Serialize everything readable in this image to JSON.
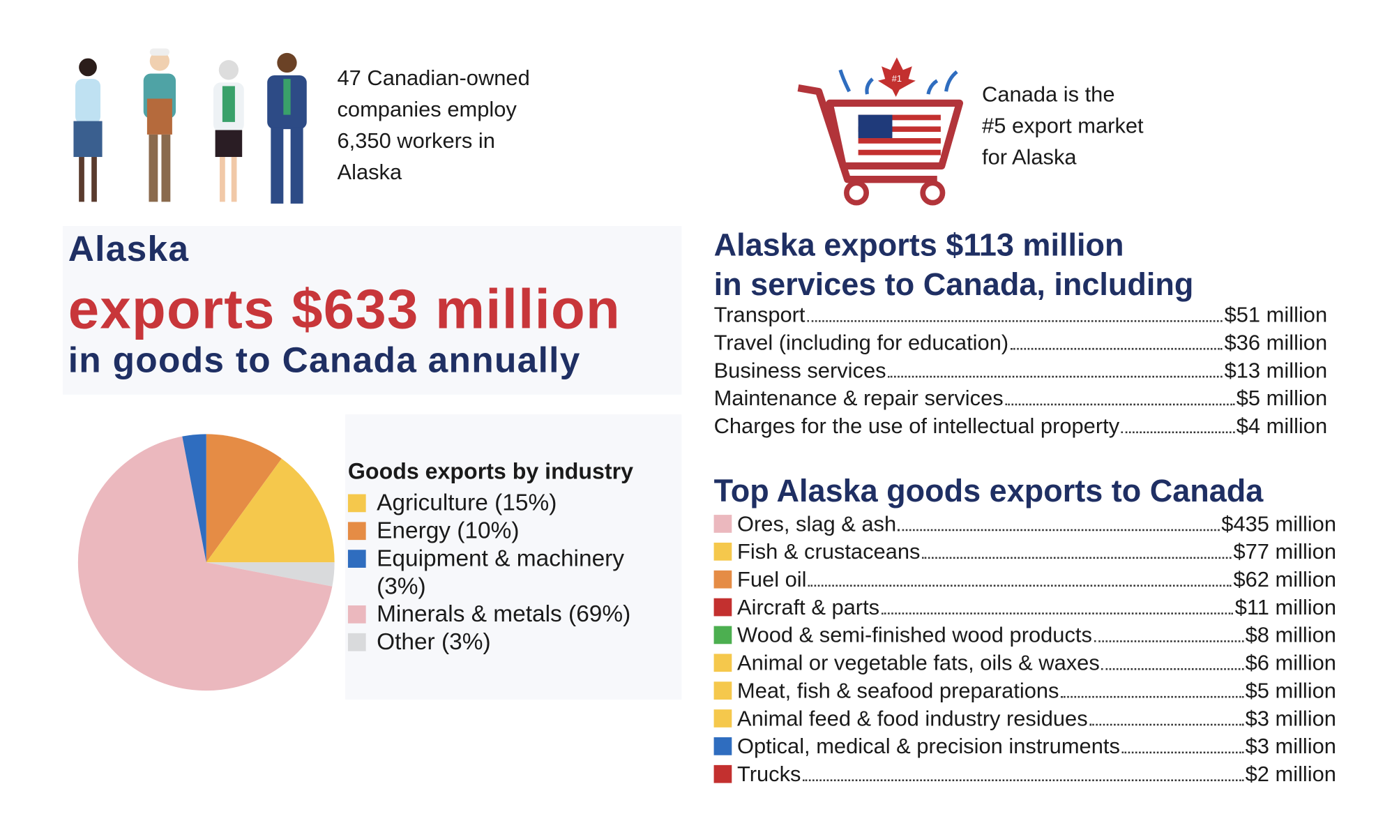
{
  "people_note": [
    "47 Canadian-owned",
    "companies employ",
    "6,350 workers in",
    "Alaska"
  ],
  "market_note": [
    "Canada is the",
    "#5 export market",
    "for Alaska"
  ],
  "cart_badge": "#1",
  "headline": {
    "state": "Alaska",
    "amount": "exports $633 million",
    "rest": "in goods to Canada annually"
  },
  "chart_data": {
    "type": "pie",
    "title": "Goods exports by industry",
    "categories": [
      "Agriculture (15%)",
      "Energy (10%)",
      "Equipment & machinery (3%)",
      "Minerals & metals (69%)",
      "Other (3%)"
    ],
    "values": [
      15,
      10,
      3,
      69,
      3
    ],
    "colors": [
      "#f5c84c",
      "#e58c45",
      "#2f6dbf",
      "#ebb8be",
      "#d9dadc"
    ]
  },
  "services": {
    "title": [
      "Alaska exports $113 million",
      "in services to Canada, including"
    ],
    "items": [
      {
        "label": "Transport",
        "value": "$51 million"
      },
      {
        "label": "Travel (including for education)",
        "value": "$36 million"
      },
      {
        "label": "Business services",
        "value": "$13 million"
      },
      {
        "label": "Maintenance & repair services",
        "value": "$5 million"
      },
      {
        "label": "Charges for the use of intellectual property",
        "value": "$4 million"
      }
    ]
  },
  "goods": {
    "title": "Top Alaska goods exports to Canada",
    "items": [
      {
        "label": "Ores, slag & ash",
        "value": "$435 million",
        "color": "#ebb8be"
      },
      {
        "label": "Fish & crustaceans",
        "value": "$77 million",
        "color": "#f5c84c"
      },
      {
        "label": "Fuel oil",
        "value": "$62 million",
        "color": "#e58c45"
      },
      {
        "label": "Aircraft & parts",
        "value": "$11 million",
        "color": "#c3302f"
      },
      {
        "label": "Wood & semi-finished wood products",
        "value": "$8 million",
        "color": "#4caf50"
      },
      {
        "label": "Animal or vegetable fats, oils & waxes",
        "value": "$6 million",
        "color": "#f5c84c"
      },
      {
        "label": "Meat, fish & seafood preparations",
        "value": "$5 million",
        "color": "#f5c84c"
      },
      {
        "label": "Animal feed & food industry residues",
        "value": "$3 million",
        "color": "#f5c84c"
      },
      {
        "label": "Optical, medical & precision instruments",
        "value": "$3 million",
        "color": "#2f6dbf"
      },
      {
        "label": "Trucks",
        "value": "$2 million",
        "color": "#c3302f"
      }
    ]
  }
}
